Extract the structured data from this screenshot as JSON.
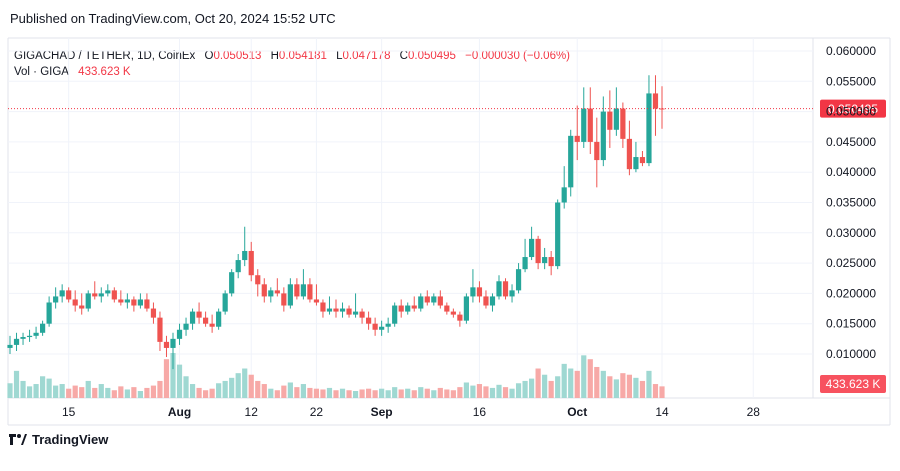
{
  "header": {
    "published": "Published on TradingView.com, Oct 20, 2024 15:52 UTC"
  },
  "legend": {
    "symbol": "GIGACHAD / TETHER, 1D, CoinEx",
    "o_label": "O",
    "o_value": "0.050513",
    "h_label": "H",
    "h_value": "0.054181",
    "l_label": "L",
    "l_value": "0.047178",
    "c_label": "C",
    "c_value": "0.050495",
    "change": "−0.000030 (−0.06%)",
    "vol_label": "Vol · GIGA",
    "vol_value": "433.623 K"
  },
  "footer": {
    "brand": "TradingView"
  },
  "colors": {
    "up": "#26a69a",
    "down": "#ef5350",
    "vol_up": "#9fd8d2",
    "vol_down": "#f7a9a7",
    "price_line": "#f23645",
    "grid": "#f0f3fa"
  },
  "chart_data": {
    "type": "candlestick",
    "y_ticks": [
      "0.060000",
      "0.055000",
      "0.050000",
      "0.045000",
      "0.040000",
      "0.035000",
      "0.030000",
      "0.025000",
      "0.020000",
      "0.015000",
      "0.010000"
    ],
    "ylim": [
      0.0075,
      0.0625
    ],
    "x_ticks": [
      {
        "label": "15",
        "day": 15,
        "bold": false
      },
      {
        "label": "Aug",
        "day": 32,
        "bold": true
      },
      {
        "label": "12",
        "day": 43,
        "bold": false
      },
      {
        "label": "22",
        "day": 53,
        "bold": false
      },
      {
        "label": "Sep",
        "day": 63,
        "bold": true
      },
      {
        "label": "16",
        "day": 78,
        "bold": false
      },
      {
        "label": "Oct",
        "day": 93,
        "bold": true
      },
      {
        "label": "14",
        "day": 106,
        "bold": false
      },
      {
        "label": "28",
        "day": 120,
        "bold": false
      }
    ],
    "x_start_day": 6,
    "last_price_label": "0.050495",
    "last_price": 0.050495,
    "volume_label": "433.623 K",
    "candles": [
      {
        "o": 0.011,
        "h": 0.013,
        "l": 0.01,
        "c": 0.0115,
        "v": 19
      },
      {
        "o": 0.0115,
        "h": 0.0135,
        "l": 0.0105,
        "c": 0.0125,
        "v": 35
      },
      {
        "o": 0.0125,
        "h": 0.0135,
        "l": 0.0115,
        "c": 0.0128,
        "v": 22
      },
      {
        "o": 0.0128,
        "h": 0.014,
        "l": 0.012,
        "c": 0.013,
        "v": 15
      },
      {
        "o": 0.013,
        "h": 0.0145,
        "l": 0.0125,
        "c": 0.0135,
        "v": 18
      },
      {
        "o": 0.0135,
        "h": 0.0155,
        "l": 0.013,
        "c": 0.015,
        "v": 28
      },
      {
        "o": 0.015,
        "h": 0.0195,
        "l": 0.0145,
        "c": 0.0185,
        "v": 25
      },
      {
        "o": 0.0185,
        "h": 0.021,
        "l": 0.0175,
        "c": 0.0195,
        "v": 16
      },
      {
        "o": 0.0195,
        "h": 0.0215,
        "l": 0.0185,
        "c": 0.0205,
        "v": 18
      },
      {
        "o": 0.0205,
        "h": 0.021,
        "l": 0.0185,
        "c": 0.019,
        "v": 12
      },
      {
        "o": 0.019,
        "h": 0.0205,
        "l": 0.017,
        "c": 0.018,
        "v": 16
      },
      {
        "o": 0.018,
        "h": 0.02,
        "l": 0.0165,
        "c": 0.0175,
        "v": 14
      },
      {
        "o": 0.0175,
        "h": 0.0205,
        "l": 0.017,
        "c": 0.02,
        "v": 22
      },
      {
        "o": 0.02,
        "h": 0.022,
        "l": 0.019,
        "c": 0.0195,
        "v": 13
      },
      {
        "o": 0.0195,
        "h": 0.021,
        "l": 0.0185,
        "c": 0.02,
        "v": 18
      },
      {
        "o": 0.02,
        "h": 0.0215,
        "l": 0.0195,
        "c": 0.0205,
        "v": 13
      },
      {
        "o": 0.0205,
        "h": 0.021,
        "l": 0.0185,
        "c": 0.019,
        "v": 10
      },
      {
        "o": 0.019,
        "h": 0.0205,
        "l": 0.018,
        "c": 0.0185,
        "v": 15
      },
      {
        "o": 0.0185,
        "h": 0.02,
        "l": 0.0175,
        "c": 0.019,
        "v": 11
      },
      {
        "o": 0.019,
        "h": 0.0195,
        "l": 0.017,
        "c": 0.018,
        "v": 14
      },
      {
        "o": 0.018,
        "h": 0.02,
        "l": 0.0175,
        "c": 0.019,
        "v": 9
      },
      {
        "o": 0.019,
        "h": 0.02,
        "l": 0.017,
        "c": 0.0175,
        "v": 13
      },
      {
        "o": 0.0175,
        "h": 0.0185,
        "l": 0.015,
        "c": 0.016,
        "v": 16
      },
      {
        "o": 0.016,
        "h": 0.017,
        "l": 0.0105,
        "c": 0.012,
        "v": 22
      },
      {
        "o": 0.012,
        "h": 0.013,
        "l": 0.0095,
        "c": 0.011,
        "v": 50
      },
      {
        "o": 0.011,
        "h": 0.0135,
        "l": 0.0075,
        "c": 0.0125,
        "v": 58
      },
      {
        "o": 0.0125,
        "h": 0.015,
        "l": 0.0115,
        "c": 0.014,
        "v": 43
      },
      {
        "o": 0.014,
        "h": 0.016,
        "l": 0.013,
        "c": 0.015,
        "v": 28
      },
      {
        "o": 0.015,
        "h": 0.0175,
        "l": 0.014,
        "c": 0.017,
        "v": 18
      },
      {
        "o": 0.017,
        "h": 0.0185,
        "l": 0.015,
        "c": 0.016,
        "v": 13
      },
      {
        "o": 0.016,
        "h": 0.017,
        "l": 0.0145,
        "c": 0.015,
        "v": 10
      },
      {
        "o": 0.015,
        "h": 0.0165,
        "l": 0.0135,
        "c": 0.0145,
        "v": 12
      },
      {
        "o": 0.0145,
        "h": 0.0175,
        "l": 0.014,
        "c": 0.017,
        "v": 19
      },
      {
        "o": 0.017,
        "h": 0.0205,
        "l": 0.0165,
        "c": 0.02,
        "v": 22
      },
      {
        "o": 0.02,
        "h": 0.024,
        "l": 0.0195,
        "c": 0.0235,
        "v": 26
      },
      {
        "o": 0.0235,
        "h": 0.0265,
        "l": 0.0225,
        "c": 0.0255,
        "v": 32
      },
      {
        "o": 0.0255,
        "h": 0.031,
        "l": 0.0245,
        "c": 0.027,
        "v": 38
      },
      {
        "o": 0.027,
        "h": 0.0285,
        "l": 0.022,
        "c": 0.023,
        "v": 30
      },
      {
        "o": 0.023,
        "h": 0.024,
        "l": 0.0195,
        "c": 0.0215,
        "v": 22
      },
      {
        "o": 0.0215,
        "h": 0.0225,
        "l": 0.0185,
        "c": 0.0195,
        "v": 18
      },
      {
        "o": 0.0195,
        "h": 0.021,
        "l": 0.0185,
        "c": 0.0205,
        "v": 12
      },
      {
        "o": 0.0205,
        "h": 0.0225,
        "l": 0.0195,
        "c": 0.02,
        "v": 10
      },
      {
        "o": 0.02,
        "h": 0.021,
        "l": 0.017,
        "c": 0.018,
        "v": 16
      },
      {
        "o": 0.018,
        "h": 0.0225,
        "l": 0.0175,
        "c": 0.0215,
        "v": 20
      },
      {
        "o": 0.0215,
        "h": 0.0225,
        "l": 0.019,
        "c": 0.0195,
        "v": 14
      },
      {
        "o": 0.0195,
        "h": 0.024,
        "l": 0.019,
        "c": 0.0215,
        "v": 18
      },
      {
        "o": 0.0215,
        "h": 0.0225,
        "l": 0.0185,
        "c": 0.019,
        "v": 13
      },
      {
        "o": 0.019,
        "h": 0.0215,
        "l": 0.018,
        "c": 0.0185,
        "v": 12
      },
      {
        "o": 0.0185,
        "h": 0.019,
        "l": 0.016,
        "c": 0.017,
        "v": 11
      },
      {
        "o": 0.017,
        "h": 0.0195,
        "l": 0.0165,
        "c": 0.0175,
        "v": 13
      },
      {
        "o": 0.0175,
        "h": 0.019,
        "l": 0.016,
        "c": 0.017,
        "v": 10
      },
      {
        "o": 0.017,
        "h": 0.0185,
        "l": 0.016,
        "c": 0.0175,
        "v": 12
      },
      {
        "o": 0.0175,
        "h": 0.018,
        "l": 0.016,
        "c": 0.0165,
        "v": 10
      },
      {
        "o": 0.0165,
        "h": 0.02,
        "l": 0.016,
        "c": 0.017,
        "v": 9
      },
      {
        "o": 0.017,
        "h": 0.0175,
        "l": 0.015,
        "c": 0.016,
        "v": 11
      },
      {
        "o": 0.016,
        "h": 0.017,
        "l": 0.014,
        "c": 0.015,
        "v": 12
      },
      {
        "o": 0.015,
        "h": 0.016,
        "l": 0.013,
        "c": 0.014,
        "v": 10
      },
      {
        "o": 0.014,
        "h": 0.0155,
        "l": 0.013,
        "c": 0.0145,
        "v": 12
      },
      {
        "o": 0.0145,
        "h": 0.016,
        "l": 0.0135,
        "c": 0.015,
        "v": 10
      },
      {
        "o": 0.015,
        "h": 0.0185,
        "l": 0.0145,
        "c": 0.018,
        "v": 14
      },
      {
        "o": 0.018,
        "h": 0.019,
        "l": 0.016,
        "c": 0.017,
        "v": 11
      },
      {
        "o": 0.017,
        "h": 0.0185,
        "l": 0.0165,
        "c": 0.018,
        "v": 12
      },
      {
        "o": 0.018,
        "h": 0.0195,
        "l": 0.017,
        "c": 0.0175,
        "v": 10
      },
      {
        "o": 0.0175,
        "h": 0.02,
        "l": 0.017,
        "c": 0.0195,
        "v": 14
      },
      {
        "o": 0.0195,
        "h": 0.0205,
        "l": 0.018,
        "c": 0.0185,
        "v": 12
      },
      {
        "o": 0.0185,
        "h": 0.02,
        "l": 0.018,
        "c": 0.0195,
        "v": 10
      },
      {
        "o": 0.0195,
        "h": 0.0205,
        "l": 0.0175,
        "c": 0.018,
        "v": 13
      },
      {
        "o": 0.018,
        "h": 0.0185,
        "l": 0.0165,
        "c": 0.017,
        "v": 11
      },
      {
        "o": 0.017,
        "h": 0.0175,
        "l": 0.016,
        "c": 0.0165,
        "v": 10
      },
      {
        "o": 0.0165,
        "h": 0.017,
        "l": 0.0145,
        "c": 0.0155,
        "v": 14
      },
      {
        "o": 0.0155,
        "h": 0.02,
        "l": 0.015,
        "c": 0.0195,
        "v": 20
      },
      {
        "o": 0.0195,
        "h": 0.024,
        "l": 0.0185,
        "c": 0.021,
        "v": 16
      },
      {
        "o": 0.021,
        "h": 0.022,
        "l": 0.0185,
        "c": 0.0195,
        "v": 18
      },
      {
        "o": 0.0195,
        "h": 0.0205,
        "l": 0.0175,
        "c": 0.018,
        "v": 15
      },
      {
        "o": 0.018,
        "h": 0.02,
        "l": 0.017,
        "c": 0.0195,
        "v": 13
      },
      {
        "o": 0.0195,
        "h": 0.023,
        "l": 0.019,
        "c": 0.022,
        "v": 17
      },
      {
        "o": 0.022,
        "h": 0.0225,
        "l": 0.019,
        "c": 0.0195,
        "v": 14
      },
      {
        "o": 0.0195,
        "h": 0.0215,
        "l": 0.0185,
        "c": 0.0205,
        "v": 12
      },
      {
        "o": 0.0205,
        "h": 0.025,
        "l": 0.02,
        "c": 0.024,
        "v": 19
      },
      {
        "o": 0.024,
        "h": 0.029,
        "l": 0.0235,
        "c": 0.026,
        "v": 22
      },
      {
        "o": 0.026,
        "h": 0.031,
        "l": 0.0255,
        "c": 0.029,
        "v": 25
      },
      {
        "o": 0.029,
        "h": 0.0295,
        "l": 0.024,
        "c": 0.025,
        "v": 38
      },
      {
        "o": 0.025,
        "h": 0.0275,
        "l": 0.024,
        "c": 0.026,
        "v": 30
      },
      {
        "o": 0.026,
        "h": 0.027,
        "l": 0.023,
        "c": 0.0245,
        "v": 22
      },
      {
        "o": 0.0245,
        "h": 0.0355,
        "l": 0.024,
        "c": 0.035,
        "v": 28
      },
      {
        "o": 0.035,
        "h": 0.041,
        "l": 0.034,
        "c": 0.0375,
        "v": 44
      },
      {
        "o": 0.0375,
        "h": 0.047,
        "l": 0.036,
        "c": 0.046,
        "v": 38
      },
      {
        "o": 0.046,
        "h": 0.051,
        "l": 0.042,
        "c": 0.045,
        "v": 35
      },
      {
        "o": 0.045,
        "h": 0.054,
        "l": 0.044,
        "c": 0.0505,
        "v": 55
      },
      {
        "o": 0.0505,
        "h": 0.054,
        "l": 0.043,
        "c": 0.045,
        "v": 50
      },
      {
        "o": 0.045,
        "h": 0.049,
        "l": 0.0375,
        "c": 0.042,
        "v": 40
      },
      {
        "o": 0.042,
        "h": 0.0525,
        "l": 0.041,
        "c": 0.05,
        "v": 35
      },
      {
        "o": 0.05,
        "h": 0.0535,
        "l": 0.044,
        "c": 0.047,
        "v": 28
      },
      {
        "o": 0.047,
        "h": 0.054,
        "l": 0.046,
        "c": 0.0505,
        "v": 24
      },
      {
        "o": 0.0505,
        "h": 0.0515,
        "l": 0.044,
        "c": 0.0455,
        "v": 32
      },
      {
        "o": 0.0455,
        "h": 0.0485,
        "l": 0.0395,
        "c": 0.0405,
        "v": 30
      },
      {
        "o": 0.0405,
        "h": 0.045,
        "l": 0.04,
        "c": 0.0425,
        "v": 26
      },
      {
        "o": 0.0425,
        "h": 0.0435,
        "l": 0.041,
        "c": 0.0415,
        "v": 22
      },
      {
        "o": 0.0415,
        "h": 0.056,
        "l": 0.041,
        "c": 0.053,
        "v": 35
      },
      {
        "o": 0.053,
        "h": 0.056,
        "l": 0.046,
        "c": 0.0505,
        "v": 18
      },
      {
        "o": 0.050513,
        "h": 0.054181,
        "l": 0.047178,
        "c": 0.050495,
        "v": 15
      }
    ]
  }
}
